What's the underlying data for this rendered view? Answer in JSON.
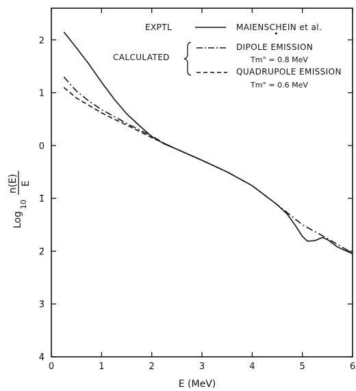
{
  "chart_data": {
    "type": "line",
    "xlabel": "E (MeV)",
    "ylabel_prefix": "Log",
    "ylabel_sub": "10",
    "ylabel_num": "n(E)",
    "ylabel_den": "E",
    "xlim": [
      0,
      6
    ],
    "ylim": [
      -4,
      2.6
    ],
    "x_ticks": [
      0,
      1,
      2,
      3,
      4,
      5,
      6
    ],
    "x_tick_labels": [
      "0",
      "1",
      "2",
      "3",
      "4",
      "5",
      "6"
    ],
    "y_ticks": [
      2,
      1,
      0,
      -1,
      -2,
      -3,
      -4
    ],
    "y_tick_labels": [
      "2",
      "1",
      "0",
      "1̄",
      "2̄",
      "3̄",
      "4̄"
    ],
    "grid": false,
    "legend": {
      "exptl_label": "EXPTL",
      "exptl_series": "MAIENSCHEIN et al.",
      "calculated_label": "CALCULATED",
      "dipole_label": "DIPOLE EMISSION",
      "dipole_param": "Tm° = 0.8 MeV",
      "quad_label": "QUADRUPOLE EMISSION",
      "quad_param": "Tm° = 0.6 MeV"
    },
    "series": [
      {
        "name": "MAIENSCHEIN et al.",
        "style": "solid",
        "x": [
          0.25,
          0.5,
          0.75,
          1.0,
          1.25,
          1.5,
          1.75,
          2.0,
          2.25,
          2.5,
          3.0,
          3.5,
          4.0,
          4.5,
          4.7,
          4.85,
          5.0,
          5.1,
          5.25,
          5.4,
          5.5,
          5.7,
          6.0
        ],
        "y": [
          2.15,
          1.85,
          1.54,
          1.2,
          0.88,
          0.6,
          0.38,
          0.17,
          0.03,
          -0.07,
          -0.28,
          -0.5,
          -0.76,
          -1.12,
          -1.3,
          -1.5,
          -1.72,
          -1.81,
          -1.8,
          -1.74,
          -1.78,
          -1.92,
          -2.05
        ]
      },
      {
        "name": "DIPOLE EMISSION",
        "style": "dashdot",
        "x": [
          0.25,
          0.5,
          0.75,
          1.0,
          1.25,
          1.5,
          1.75,
          2.0,
          2.25,
          2.5,
          3.0,
          3.5,
          4.0,
          4.5,
          5.0,
          5.5,
          6.0
        ],
        "y": [
          1.3,
          1.03,
          0.84,
          0.68,
          0.55,
          0.42,
          0.3,
          0.18,
          0.04,
          -0.07,
          -0.28,
          -0.5,
          -0.76,
          -1.12,
          -1.5,
          -1.76,
          -2.04
        ]
      },
      {
        "name": "QUADRUPOLE EMISSION",
        "style": "dashed",
        "x": [
          0.25,
          0.5,
          0.75,
          1.0,
          1.25,
          1.5,
          1.75,
          2.0,
          2.25,
          2.5,
          3.0
        ],
        "y": [
          1.1,
          0.9,
          0.76,
          0.62,
          0.5,
          0.39,
          0.27,
          0.15,
          0.04,
          -0.07,
          -0.28
        ]
      }
    ]
  }
}
